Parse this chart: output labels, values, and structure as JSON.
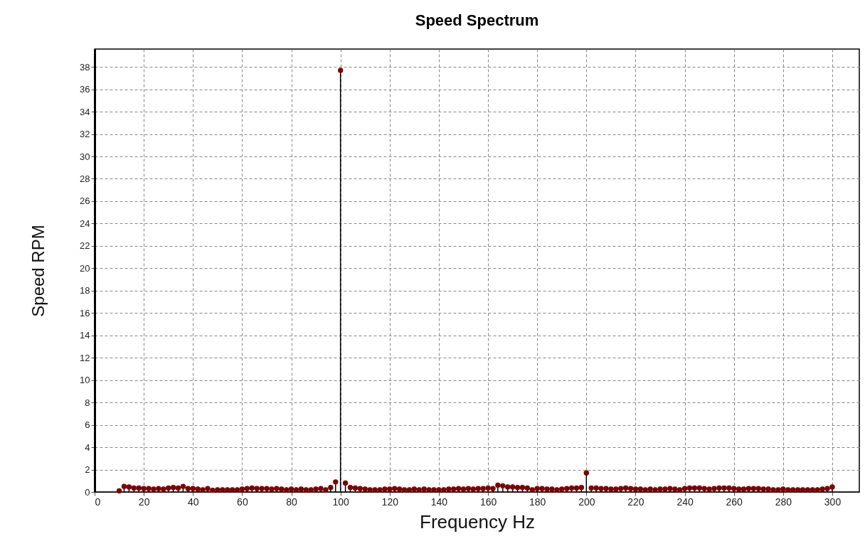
{
  "chart_data": {
    "type": "lollipop",
    "title": "Speed Spectrum",
    "xlabel": "Frequency Hz",
    "ylabel": "Speed RPM",
    "xlim": [
      0,
      311
    ],
    "xticks": [
      0,
      20,
      40,
      60,
      80,
      100,
      120,
      140,
      160,
      180,
      200,
      220,
      240,
      260,
      280,
      300
    ],
    "ylim": [
      0,
      39.6
    ],
    "yticks": [
      0,
      2,
      4,
      6,
      8,
      10,
      12,
      14,
      16,
      18,
      20,
      22,
      24,
      26,
      28,
      30,
      32,
      34,
      36,
      38
    ],
    "grid": true,
    "marker": "circle",
    "x": [
      10,
      12,
      14,
      16,
      18,
      20,
      22,
      24,
      26,
      28,
      30,
      32,
      34,
      36,
      38,
      40,
      42,
      44,
      46,
      48,
      50,
      52,
      54,
      56,
      58,
      60,
      62,
      64,
      66,
      68,
      70,
      72,
      74,
      76,
      78,
      80,
      82,
      84,
      86,
      88,
      90,
      92,
      94,
      96,
      98,
      100,
      102,
      104,
      106,
      108,
      110,
      112,
      114,
      116,
      118,
      120,
      122,
      124,
      126,
      128,
      130,
      132,
      134,
      136,
      138,
      140,
      142,
      144,
      146,
      148,
      150,
      152,
      154,
      156,
      158,
      160,
      162,
      164,
      166,
      168,
      170,
      172,
      174,
      176,
      178,
      180,
      182,
      184,
      186,
      188,
      190,
      192,
      194,
      196,
      198,
      200,
      202,
      204,
      206,
      208,
      210,
      212,
      214,
      216,
      218,
      220,
      222,
      224,
      226,
      228,
      230,
      232,
      234,
      236,
      238,
      240,
      242,
      244,
      246,
      248,
      250,
      252,
      254,
      256,
      258,
      260,
      262,
      264,
      266,
      268,
      270,
      272,
      274,
      276,
      278,
      280,
      282,
      284,
      286,
      288,
      290,
      292,
      294,
      296,
      298,
      300
    ],
    "series": [
      {
        "color": "#800000",
        "values": [
          0.1,
          0.5,
          0.45,
          0.35,
          0.35,
          0.3,
          0.3,
          0.25,
          0.3,
          0.25,
          0.35,
          0.4,
          0.35,
          0.5,
          0.3,
          0.3,
          0.25,
          0.2,
          0.3,
          0.15,
          0.2,
          0.2,
          0.2,
          0.2,
          0.2,
          0.25,
          0.3,
          0.35,
          0.3,
          0.3,
          0.3,
          0.25,
          0.3,
          0.25,
          0.2,
          0.25,
          0.2,
          0.25,
          0.2,
          0.2,
          0.25,
          0.3,
          0.2,
          0.4,
          0.9,
          37.7,
          0.8,
          0.4,
          0.35,
          0.3,
          0.25,
          0.2,
          0.2,
          0.2,
          0.25,
          0.25,
          0.3,
          0.25,
          0.2,
          0.2,
          0.25,
          0.2,
          0.25,
          0.2,
          0.2,
          0.2,
          0.2,
          0.25,
          0.25,
          0.3,
          0.25,
          0.3,
          0.25,
          0.3,
          0.3,
          0.35,
          0.3,
          0.6,
          0.55,
          0.45,
          0.45,
          0.4,
          0.4,
          0.35,
          0.2,
          0.3,
          0.3,
          0.25,
          0.25,
          0.2,
          0.25,
          0.3,
          0.35,
          0.35,
          0.4,
          1.7,
          0.35,
          0.35,
          0.3,
          0.3,
          0.25,
          0.25,
          0.3,
          0.35,
          0.3,
          0.25,
          0.25,
          0.2,
          0.25,
          0.2,
          0.25,
          0.25,
          0.3,
          0.25,
          0.2,
          0.3,
          0.35,
          0.35,
          0.35,
          0.3,
          0.25,
          0.3,
          0.35,
          0.35,
          0.35,
          0.3,
          0.25,
          0.25,
          0.3,
          0.3,
          0.3,
          0.25,
          0.25,
          0.2,
          0.2,
          0.25,
          0.2,
          0.2,
          0.2,
          0.2,
          0.2,
          0.2,
          0.2,
          0.25,
          0.3,
          0.45
        ]
      }
    ]
  }
}
